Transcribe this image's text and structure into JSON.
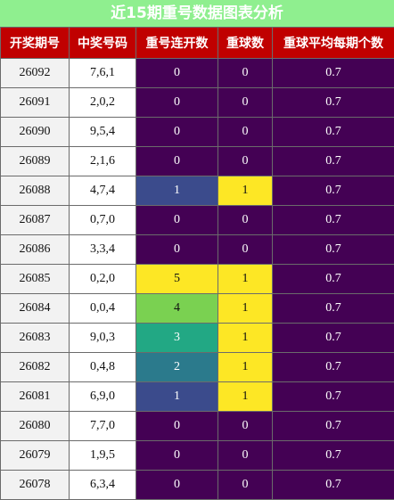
{
  "title": "近15期重号数据图表分析",
  "headers": [
    "开奖期号",
    "中奖号码",
    "重号连开数",
    "重球数",
    "重球平均每期个数"
  ],
  "colors": {
    "title_bg": "#8fef8f",
    "header_bg": "#c00000",
    "heat_scale": [
      "#440154",
      "#3b4b8c",
      "#2b7a8c",
      "#22a884",
      "#7ad151",
      "#fde725"
    ],
    "hit_color": "#fde725",
    "miss_color": "#440154"
  },
  "chart_data": {
    "type": "table",
    "columns": [
      "开奖期号",
      "中奖号码",
      "重号连开数",
      "重球数",
      "重球平均每期个数"
    ],
    "rows": [
      [
        "26092",
        "7,6,1",
        0,
        0,
        "0.7"
      ],
      [
        "26091",
        "2,0,2",
        0,
        0,
        "0.7"
      ],
      [
        "26090",
        "9,5,4",
        0,
        0,
        "0.7"
      ],
      [
        "26089",
        "2,1,6",
        0,
        0,
        "0.7"
      ],
      [
        "26088",
        "4,7,4",
        1,
        1,
        "0.7"
      ],
      [
        "26087",
        "0,7,0",
        0,
        0,
        "0.7"
      ],
      [
        "26086",
        "3,3,4",
        0,
        0,
        "0.7"
      ],
      [
        "26085",
        "0,2,0",
        5,
        1,
        "0.7"
      ],
      [
        "26084",
        "0,0,4",
        4,
        1,
        "0.7"
      ],
      [
        "26083",
        "9,0,3",
        3,
        1,
        "0.7"
      ],
      [
        "26082",
        "0,4,8",
        2,
        1,
        "0.7"
      ],
      [
        "26081",
        "6,9,0",
        1,
        1,
        "0.7"
      ],
      [
        "26080",
        "7,7,0",
        0,
        0,
        "0.7"
      ],
      [
        "26079",
        "1,9,5",
        0,
        0,
        "0.7"
      ],
      [
        "26078",
        "6,3,4",
        0,
        0,
        "0.7"
      ]
    ]
  }
}
